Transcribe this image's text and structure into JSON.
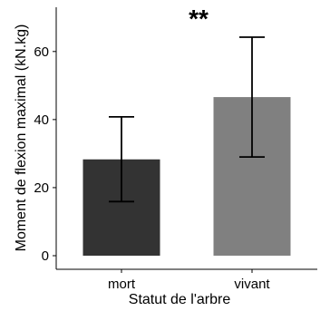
{
  "chart_data": {
    "type": "bar",
    "categories": [
      "mort",
      "vivant"
    ],
    "values": [
      28.3,
      46.6
    ],
    "error_low": [
      15.9,
      29.0
    ],
    "error_high": [
      40.8,
      64.2
    ],
    "colors": [
      "#333333",
      "#808080"
    ],
    "xlabel": "Statut de l'arbre",
    "ylabel": "Moment de flexion maximal (kN.kg)",
    "ylim": [
      -4,
      73
    ],
    "yticks": [
      0,
      20,
      40,
      60
    ],
    "annotation": "**",
    "grid": false
  }
}
